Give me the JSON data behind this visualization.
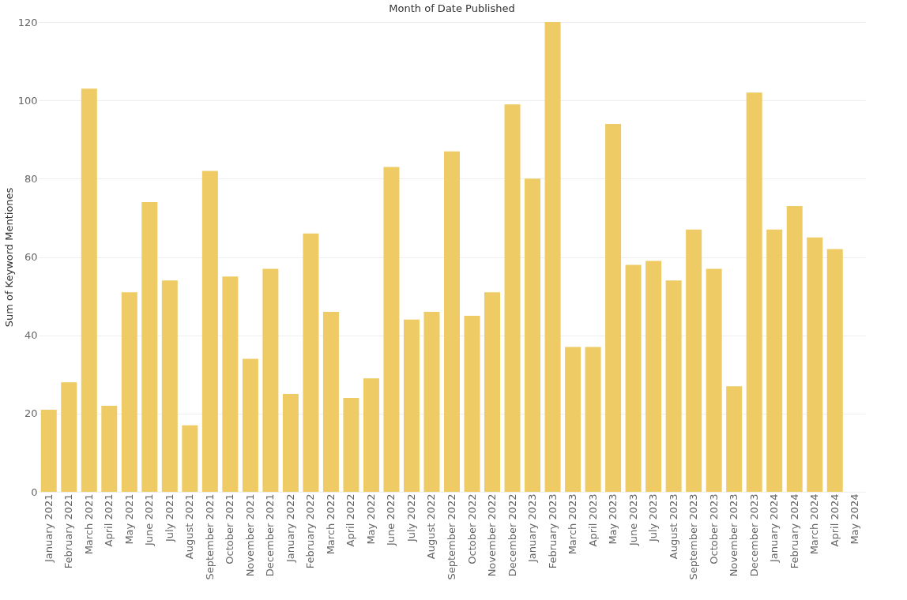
{
  "chart_data": {
    "type": "bar",
    "xlabel": "Month of Date Published",
    "ylabel": "Sum of Keyword Mentiones",
    "categories": [
      "January 2021",
      "February 2021",
      "March 2021",
      "April 2021",
      "May 2021",
      "June 2021",
      "July 2021",
      "August 2021",
      "September 2021",
      "October 2021",
      "November 2021",
      "December 2021",
      "January 2022",
      "February 2022",
      "March 2022",
      "April 2022",
      "May 2022",
      "June 2022",
      "July 2022",
      "August 2022",
      "September 2022",
      "October 2022",
      "November 2022",
      "December 2022",
      "January 2023",
      "February 2023",
      "March 2023",
      "April 2023",
      "May 2023",
      "June 2023",
      "July 2023",
      "August 2023",
      "September 2023",
      "October 2023",
      "November 2023",
      "December 2023",
      "January 2024",
      "February 2024",
      "March 2024",
      "April 2024",
      "May 2024"
    ],
    "values": [
      21,
      28,
      103,
      22,
      51,
      74,
      54,
      17,
      82,
      55,
      34,
      57,
      25,
      66,
      46,
      24,
      29,
      83,
      44,
      46,
      87,
      45,
      51,
      99,
      80,
      120,
      37,
      37,
      94,
      58,
      59,
      54,
      67,
      57,
      27,
      102,
      67,
      73,
      65,
      62,
      null
    ],
    "color": "#eecb65",
    "ylim": [
      0,
      120
    ],
    "yticks": [
      0,
      20,
      40,
      60,
      80,
      100,
      120
    ],
    "grid": "y"
  }
}
